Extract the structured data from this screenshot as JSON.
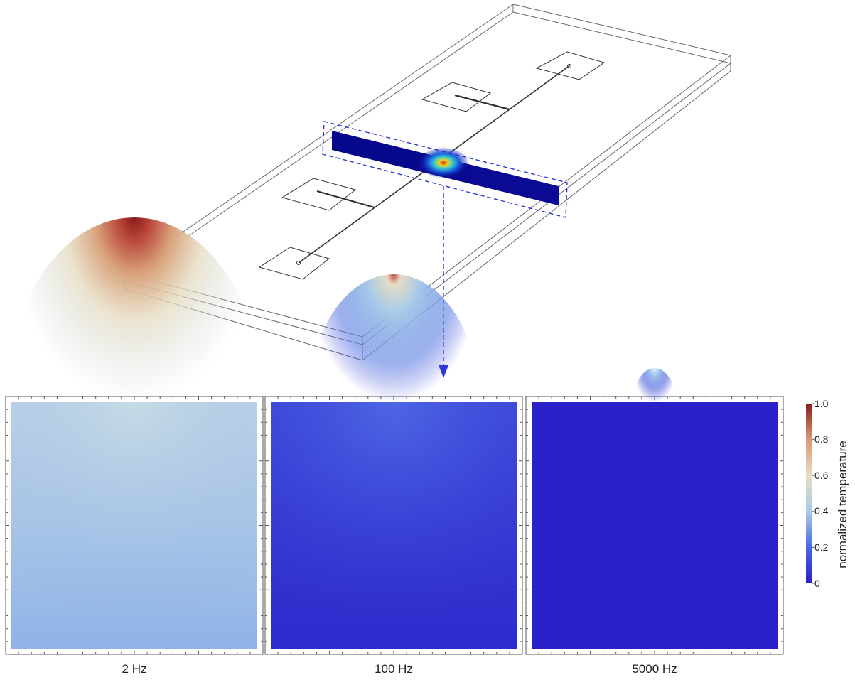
{
  "panels": [
    {
      "label": "2 Hz",
      "frequency_hz": 2
    },
    {
      "label": "100 Hz",
      "frequency_hz": 100
    },
    {
      "label": "5000 Hz",
      "frequency_hz": 5000
    }
  ],
  "colorbar": {
    "title": "normalized temperature",
    "ticks": [
      "0",
      "0.2",
      "0.4",
      "0.6",
      "0.8",
      "1.0"
    ],
    "range": [
      0,
      1
    ],
    "colors": [
      "#2a1fc7",
      "#4a68e0",
      "#a9cbe8",
      "#e9dcc3",
      "#d89a76",
      "#8b1a1a"
    ]
  },
  "colors": {
    "outline": "#555555",
    "selection_dash": "#2b35d6",
    "slice_base": "#0a0a8f"
  }
}
